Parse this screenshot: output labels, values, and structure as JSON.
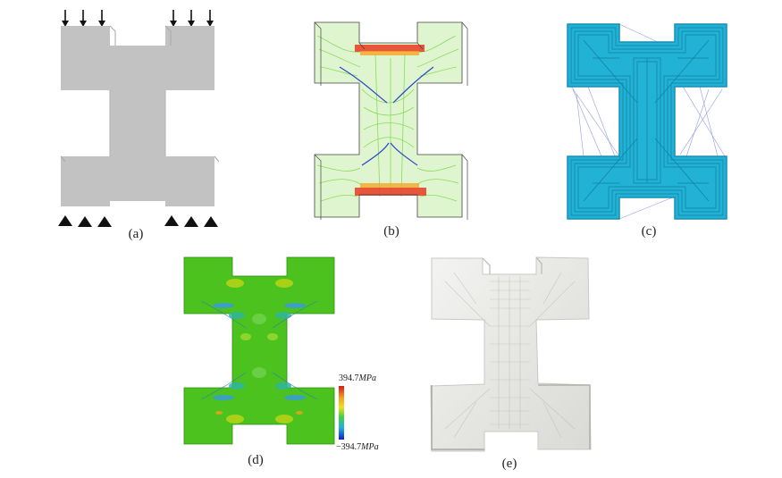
{
  "captions": {
    "a": "(a)",
    "b": "(b)",
    "c": "(c)",
    "d": "(d)",
    "e": "(e)"
  },
  "colorbar": {
    "max_value": "394.7",
    "min_value": "−394.7",
    "unit": "MPa"
  },
  "colors": {
    "model_gray": "#c2c2c2",
    "infill_cyan": "#22b2d6",
    "stress_green": "#4cc21e",
    "print_white": "#e4e4e4"
  }
}
